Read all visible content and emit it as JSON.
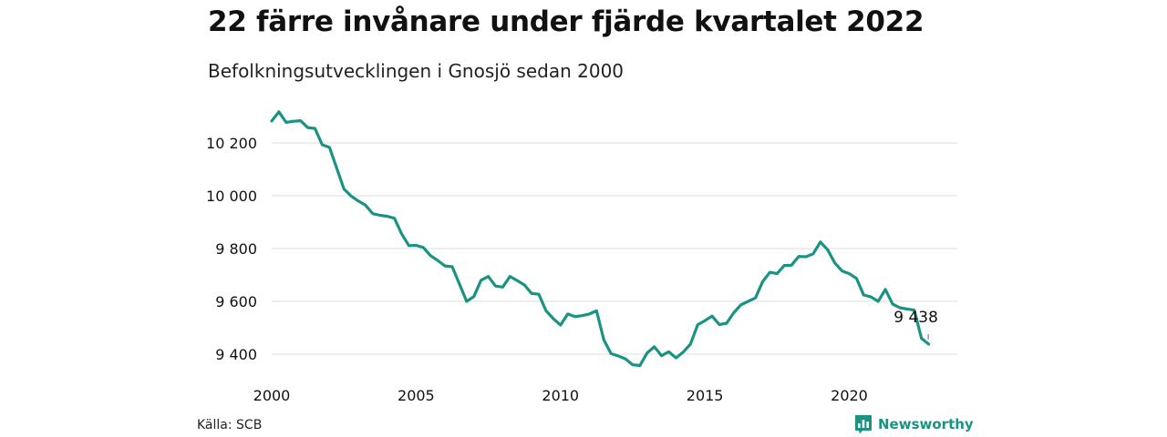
{
  "header": {
    "title": "22 färre invånare under fjärde kvartalet 2022",
    "subtitle": "Befolkningsutvecklingen i Gnosjö sedan 2000"
  },
  "footer": {
    "source": "Källa: SCB",
    "brand": "Newsworthy",
    "brand_icon": "bar-chart-icon"
  },
  "colors": {
    "line": "#1a9383",
    "grid": "#dddddd",
    "text": "#111111"
  },
  "chart_data": {
    "type": "line",
    "title": "22 färre invånare under fjärde kvartalet 2022",
    "subtitle": "Befolkningsutvecklingen i Gnosjö sedan 2000",
    "xlabel": "",
    "ylabel": "",
    "x_ticks": [
      "2000",
      "2005",
      "2010",
      "2015",
      "2020"
    ],
    "y_ticks": [
      "9 400",
      "9 600",
      "9 800",
      "10 000",
      "10 200"
    ],
    "y_tick_values": [
      9400,
      9600,
      9800,
      10000,
      10200
    ],
    "xlim": [
      2000,
      2023.75
    ],
    "ylim": [
      9320,
      10340
    ],
    "grid": "horizontal",
    "legend": "none",
    "series": [
      {
        "x": [
          2000.0,
          2000.25,
          2000.5,
          2000.75,
          2001.0,
          2001.25,
          2001.5,
          2001.75,
          2002.0,
          2002.25,
          2002.5,
          2002.75,
          2003.0,
          2003.25,
          2003.5,
          2003.75,
          2004.0,
          2004.25,
          2004.5,
          2004.75,
          2005.0,
          2005.25,
          2005.5,
          2005.75,
          2006.0,
          2006.25,
          2006.5,
          2006.75,
          2007.0,
          2007.25,
          2007.5,
          2007.75,
          2008.0,
          2008.25,
          2008.5,
          2008.75,
          2009.0,
          2009.25,
          2009.5,
          2009.75,
          2010.0,
          2010.25,
          2010.5,
          2010.75,
          2011.0,
          2011.25,
          2011.5,
          2011.75,
          2012.0,
          2012.25,
          2012.5,
          2012.75,
          2013.0,
          2013.25,
          2013.5,
          2013.75,
          2014.0,
          2014.25,
          2014.5,
          2014.75,
          2015.0,
          2015.25,
          2015.5,
          2015.75,
          2016.0,
          2016.25,
          2016.5,
          2016.75,
          2017.0,
          2017.25,
          2017.5,
          2017.75,
          2018.0,
          2018.25,
          2018.5,
          2018.75,
          2019.0,
          2019.25,
          2019.5,
          2019.75,
          2020.0,
          2020.25,
          2020.5,
          2020.75,
          2021.0,
          2021.25,
          2021.5,
          2021.75,
          2022.0,
          2022.25,
          2022.5,
          2022.75
        ],
        "values": [
          10283,
          10318,
          10278,
          10282,
          10284,
          10258,
          10255,
          10193,
          10183,
          10105,
          10026,
          9999,
          9980,
          9964,
          9932,
          9926,
          9922,
          9915,
          9856,
          9811,
          9812,
          9804,
          9773,
          9755,
          9734,
          9731,
          9666,
          9600,
          9618,
          9680,
          9694,
          9658,
          9654,
          9694,
          9679,
          9662,
          9630,
          9627,
          9564,
          9535,
          9510,
          9552,
          9542,
          9546,
          9552,
          9564,
          9454,
          9402,
          9393,
          9382,
          9360,
          9357,
          9405,
          9428,
          9394,
          9409,
          9386,
          9408,
          9438,
          9511,
          9527,
          9544,
          9512,
          9517,
          9557,
          9587,
          9600,
          9613,
          9675,
          9710,
          9705,
          9736,
          9737,
          9770,
          9769,
          9780,
          9825,
          9796,
          9745,
          9715,
          9705,
          9687,
          9624,
          9617,
          9600,
          9645,
          9590,
          9576,
          9571,
          9567,
          9460,
          9438
        ]
      }
    ],
    "annotations": [
      {
        "text": "9 438",
        "x": 2022.75,
        "y": 9438
      }
    ]
  }
}
